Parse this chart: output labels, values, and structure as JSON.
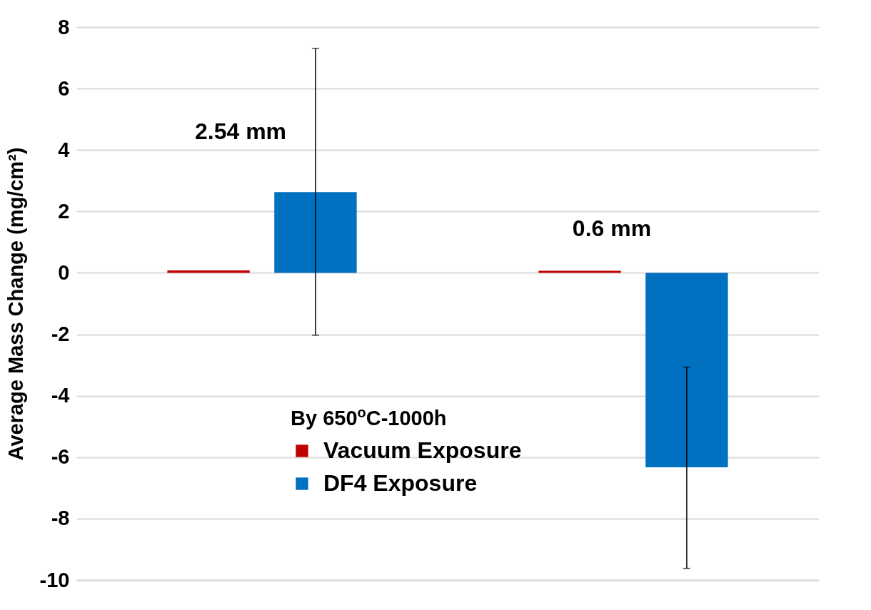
{
  "chart_data": {
    "type": "bar",
    "ylabel": "Average Mass Change (mg/cm²)",
    "categories": [
      null,
      null
    ],
    "series": [
      {
        "name": "Vacuum Exposure",
        "color": "#c00000",
        "values": [
          0.08,
          0.07
        ]
      },
      {
        "name": "DF4 Exposure",
        "color": "#0070c0",
        "values": [
          2.63,
          -6.33
        ],
        "errors": [
          [
            -2.03,
            7.31
          ],
          [
            -9.62,
            -3.07
          ]
        ]
      }
    ],
    "ylim": [
      -10,
      8
    ],
    "yticks": [
      -10,
      -8,
      -6,
      -4,
      -2,
      0,
      2,
      4,
      6,
      8
    ],
    "grid": "y",
    "legend": "bottom",
    "legend_title": "By 650$^{o}$C-1000h",
    "annotations": [
      "2.54 mm",
      "0.6 mm"
    ],
    "tick_labels": "y"
  }
}
